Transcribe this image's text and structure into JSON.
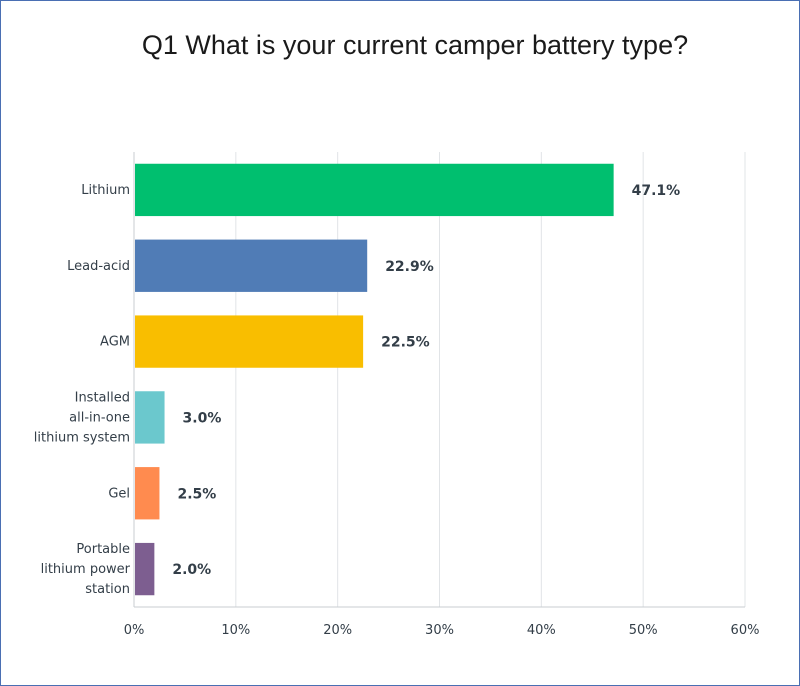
{
  "chart_data": {
    "type": "bar",
    "orientation": "horizontal",
    "title": "Q1 What is your current camper battery type?",
    "categories": [
      [
        "Lithium"
      ],
      [
        "Lead-acid"
      ],
      [
        "AGM"
      ],
      [
        "Installed",
        "all-in-one",
        "lithium system"
      ],
      [
        "Gel"
      ],
      [
        "Portable",
        "lithium power",
        "station"
      ]
    ],
    "values": [
      47.1,
      22.9,
      22.5,
      3.0,
      2.5,
      2.0
    ],
    "data_labels": [
      "47.1%",
      "22.9%",
      "22.5%",
      "3.0%",
      "2.5%",
      "2.0%"
    ],
    "colors": [
      "#00bf6f",
      "#507cb6",
      "#f9be00",
      "#6bc8cd",
      "#ff8b4f",
      "#7d5e90"
    ],
    "xlim": [
      0,
      60
    ],
    "x_ticks": [
      "0%",
      "10%",
      "20%",
      "30%",
      "40%",
      "50%",
      "60%"
    ],
    "grid": true
  }
}
